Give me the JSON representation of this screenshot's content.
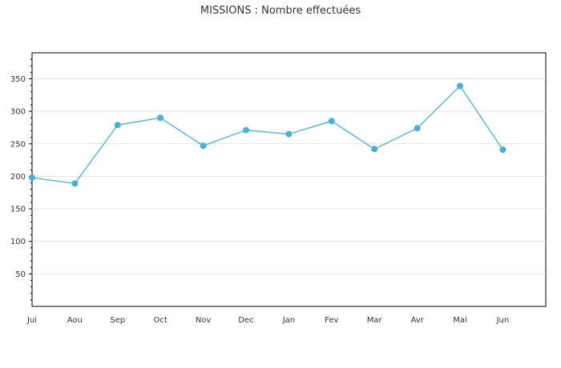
{
  "chart_data": {
    "type": "line",
    "title": "MISSIONS : Nombre effectuées",
    "xlabel": "",
    "ylabel": "",
    "categories": [
      "Jui",
      "Aou",
      "Sep",
      "Oct",
      "Nov",
      "Dec",
      "Jan",
      "Fev",
      "Mar",
      "Avr",
      "Mai",
      "Jun"
    ],
    "series": [
      {
        "values": [
          198,
          189,
          279,
          290,
          247,
          271,
          265,
          285,
          242,
          274,
          339,
          241
        ]
      }
    ],
    "ylim": [
      0,
      390
    ],
    "yticks": [
      "50",
      "100",
      "150",
      "200",
      "250",
      "300",
      "350"
    ],
    "grid": true,
    "legend": "none"
  },
  "colors": {
    "line": "#5bb8d8",
    "marker": "#4ab0d6",
    "grid": "#e3e3e3",
    "axis": "#000000",
    "text": "#333333"
  }
}
